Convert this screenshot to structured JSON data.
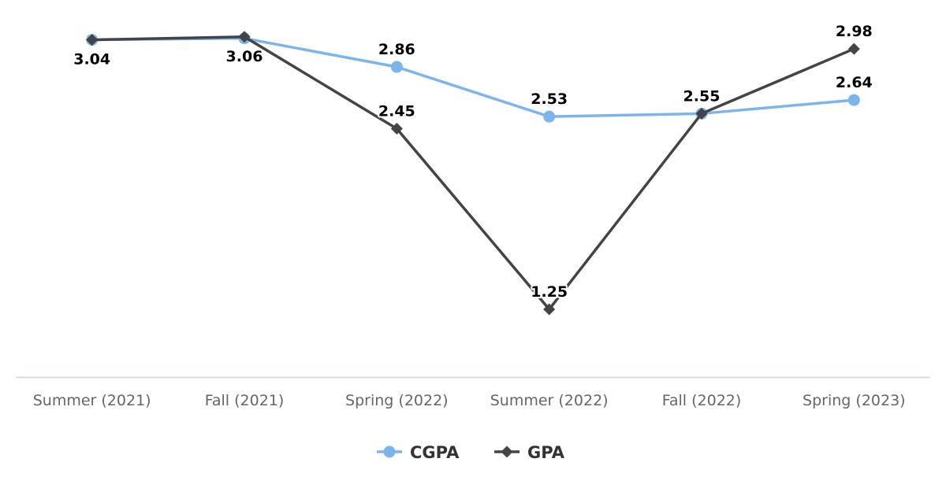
{
  "chart_data": {
    "type": "line",
    "title": "",
    "xlabel": "",
    "ylabel": "",
    "categories": [
      "Summer (2021)",
      "Fall (2021)",
      "Spring (2022)",
      "Summer (2022)",
      "Fall (2022)",
      "Spring (2023)"
    ],
    "ylim": [
      0.8,
      3.2
    ],
    "grid": false,
    "legend": "bottom-center",
    "series": [
      {
        "name": "CGPA",
        "values": [
          3.04,
          3.05,
          2.86,
          2.53,
          2.55,
          2.64
        ],
        "labels": [
          "",
          "",
          "2.86",
          "2.53",
          "",
          "2.64"
        ],
        "color": "#7cb5ec",
        "marker": "circle"
      },
      {
        "name": "GPA",
        "values": [
          3.04,
          3.06,
          2.45,
          1.25,
          2.55,
          2.98
        ],
        "labels": [
          "3.04",
          "3.06",
          "2.45",
          "1.25",
          "2.55",
          "2.98"
        ],
        "color": "#434348",
        "marker": "diamond"
      }
    ],
    "axis_line_color": "#ccd6eb"
  }
}
